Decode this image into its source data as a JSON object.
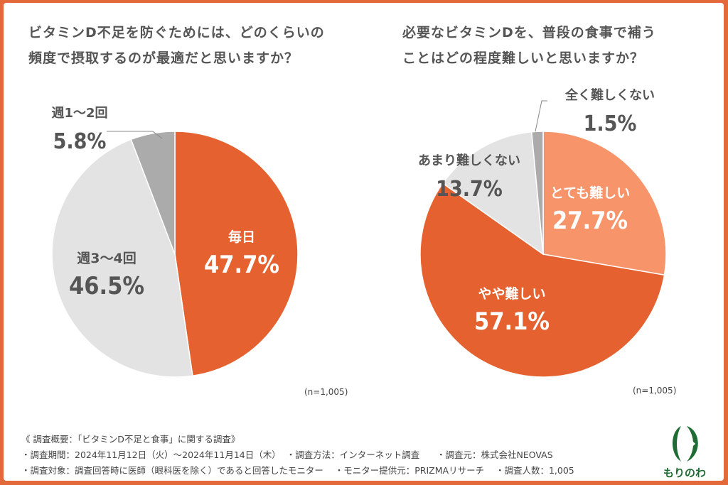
{
  "chart_data": [
    {
      "type": "pie",
      "title": "ビタミンD不足を防ぐためには、どのくらいの頻度で摂取するのが最適だと思いますか？",
      "title_lines": [
        "ビタミンD不足を防ぐためには、どのくらいの",
        "頻度で摂取するのが最適だと思いますか？"
      ],
      "note": "(n=1,005)",
      "slices": [
        {
          "label": "毎日",
          "value": 47.7,
          "display": "47.7%",
          "color": "#E5612F",
          "text_color": "#ffffff"
        },
        {
          "label": "週3〜4回",
          "value": 46.5,
          "display": "46.5%",
          "color": "#E3E3E3",
          "text_color": "#555555"
        },
        {
          "label": "週1〜2回",
          "value": 5.8,
          "display": "5.8%",
          "color": "#ABABAB",
          "text_color": "#555555"
        }
      ]
    },
    {
      "type": "pie",
      "title": "必要なビタミンDを、普段の食事で補うことはどの程度難しいと思いますか？",
      "title_lines": [
        "必要なビタミンDを、普段の食事で補う",
        "ことはどの程度難しいと思いますか？"
      ],
      "note": "(n=1,005)",
      "slices": [
        {
          "label": "とても難しい",
          "value": 27.7,
          "display": "27.7%",
          "color": "#F7946A",
          "text_color": "#ffffff"
        },
        {
          "label": "やや難しい",
          "value": 57.1,
          "display": "57.1%",
          "color": "#E5612F",
          "text_color": "#ffffff"
        },
        {
          "label": "あまり難しくない",
          "value": 13.7,
          "display": "13.7%",
          "color": "#E3E3E3",
          "text_color": "#555555"
        },
        {
          "label": "全く難しくない",
          "value": 1.5,
          "display": "1.5%",
          "color": "#ABABAB",
          "text_color": "#555555"
        }
      ]
    }
  ],
  "footer": {
    "line1": "《 調査概要：「ビタミンD不足と食事」に関する調査》",
    "line2": "・調査期間：2024年11月12日（火）〜2024年11月14日（木）  ・調査方法：インターネット調査      ・調査元：株式会社NEOVAS",
    "line3": "・調査対象：調査回答時に医師（眼科医を除く）であると回答したモニター    ・モニター提供元：PRIZMAリサーチ    ・調査人数：1,005"
  },
  "logo": {
    "text": "もりのわ",
    "color": "#1E6B33"
  }
}
